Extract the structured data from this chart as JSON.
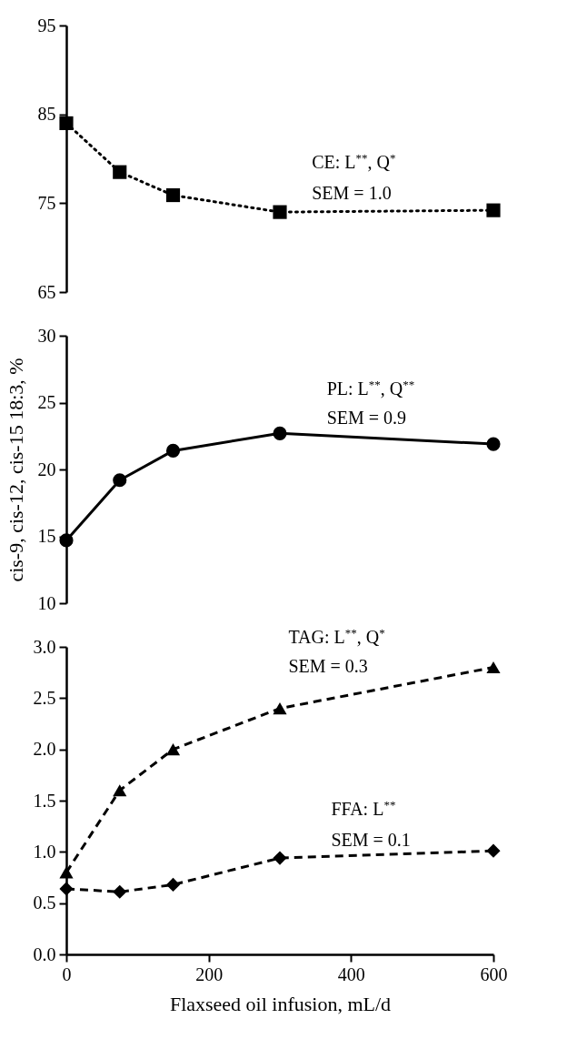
{
  "chart_data": [
    {
      "type": "line",
      "x": [
        0,
        75,
        150,
        300,
        600
      ],
      "xlim": [
        0,
        600
      ],
      "ylim": [
        65,
        95
      ],
      "yticks": [
        65,
        75,
        85,
        95
      ],
      "tick_labels": "y",
      "marker": "square",
      "line_style": "dotted",
      "series": [
        {
          "color": "#000000",
          "values": [
            84.0,
            78.5,
            75.9,
            74.0,
            74.2
          ]
        }
      ],
      "annotations": [
        "CE: L$^{**}$, Q$^{*}$",
        "SEM = 1.0"
      ]
    },
    {
      "type": "line",
      "x": [
        0,
        75,
        150,
        300,
        600
      ],
      "xlim": [
        0,
        600
      ],
      "ylim": [
        10,
        30
      ],
      "yticks": [
        10,
        15,
        20,
        25,
        30
      ],
      "tick_labels": "y",
      "marker": "circle",
      "line_style": "solid",
      "ylabel": "cis-9, cis-12, cis-15 18:3, %",
      "series": [
        {
          "color": "#000000",
          "values": [
            14.7,
            19.2,
            21.4,
            22.7,
            21.9
          ]
        }
      ],
      "annotations": [
        "PL: L$^{**}$, Q$^{**}$",
        "SEM = 0.9"
      ]
    },
    {
      "type": "line",
      "x": [
        0,
        75,
        150,
        300,
        600
      ],
      "xlim": [
        0,
        600
      ],
      "ylim": [
        0,
        3
      ],
      "yticks": [
        {
          "value": 0,
          "label": "0.0"
        },
        0.5,
        {
          "value": 1,
          "label": "1.0"
        },
        1.5,
        {
          "value": 2,
          "label": "2.0"
        },
        2.5,
        {
          "value": 3,
          "label": "3.0"
        }
      ],
      "xticks": [
        0,
        200,
        400,
        600
      ],
      "xlabel": "Flaxseed oil infusion, mL/d",
      "line_style": "dashed",
      "series": [
        {
          "color": "#000000",
          "values": [
            0.8,
            1.6,
            2.0,
            2.4,
            2.8
          ],
          "marker": "triangle"
        },
        {
          "color": "#000000",
          "values": [
            0.64,
            0.61,
            0.68,
            0.94,
            1.01
          ],
          "marker": "diamond"
        }
      ],
      "annotations": [
        "TAG: L$^{**}$, Q$^{*}$",
        "SEM = 0.3",
        "FFA: L$^{**}$",
        "SEM = 0.1"
      ]
    }
  ]
}
